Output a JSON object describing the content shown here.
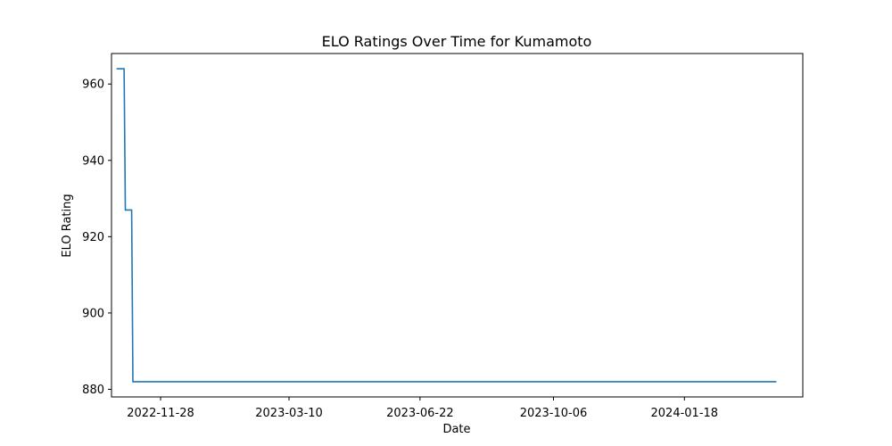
{
  "chart_data": {
    "type": "line",
    "title": "ELO Ratings Over Time for Kumamoto",
    "xlabel": "Date",
    "ylabel": "ELO Rating",
    "x_axis_type": "date",
    "xlim": [
      "2022-10-20",
      "2024-04-21"
    ],
    "ylim": [
      878,
      968
    ],
    "x_ticks": [
      "2022-11-28",
      "2023-03-10",
      "2023-06-22",
      "2023-10-06",
      "2024-01-18"
    ],
    "y_ticks": [
      880,
      900,
      920,
      940,
      960
    ],
    "grid": false,
    "legend": "none",
    "series": [
      {
        "color": "#1f77b4",
        "line_style": "steps",
        "x": [
          "2022-10-24",
          "2022-10-30",
          "2022-10-31",
          "2022-11-05",
          "2022-11-06",
          "2024-03-31"
        ],
        "y": [
          964,
          964,
          927,
          927,
          882,
          882
        ]
      }
    ]
  }
}
